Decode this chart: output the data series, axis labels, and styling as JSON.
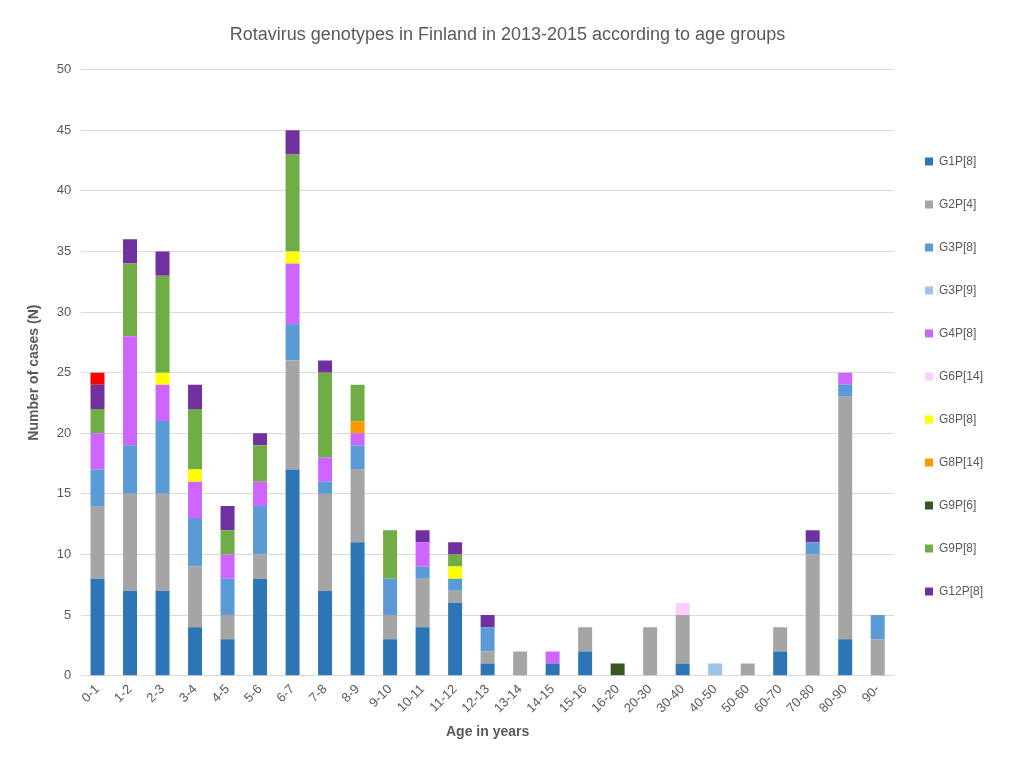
{
  "chart_data": {
    "type": "bar",
    "title": "Rotavirus genotypes in Finland in 2013-2015 according to age groups",
    "xlabel": "Age in years",
    "ylabel": "Number of cases (N)",
    "categories": [
      "0-1",
      "1-2",
      "2-3",
      "3-4",
      "4-5",
      "5-6",
      "6-7",
      "7-8",
      "8-9",
      "9-10",
      "10-11",
      "11-12",
      "12-13",
      "13-14",
      "14-15",
      "15-16",
      "16-20",
      "20-30",
      "30-40",
      "40-50",
      "50-60",
      "60-70",
      "70-80",
      "80-90",
      "90-"
    ],
    "series": [
      {
        "name": "G1P[8]",
        "color": "#2e75b6",
        "values": [
          8,
          7,
          7,
          4,
          3,
          8,
          17,
          7,
          11,
          3,
          4,
          6,
          1,
          null,
          1,
          2,
          null,
          null,
          1,
          null,
          null,
          2,
          null,
          3,
          null
        ]
      },
      {
        "name": "G2P[4]",
        "color": "#a5a5a5",
        "values": [
          6,
          8,
          8,
          5,
          2,
          2,
          9,
          8,
          6,
          2,
          4,
          1,
          1,
          2,
          null,
          2,
          null,
          4,
          4,
          null,
          1,
          2,
          10,
          20,
          3
        ]
      },
      {
        "name": "G3P[8]",
        "color": "#5b9bd5",
        "values": [
          3,
          4,
          6,
          4,
          3,
          4,
          3,
          1,
          2,
          3,
          1,
          1,
          2,
          null,
          null,
          null,
          null,
          null,
          null,
          null,
          null,
          null,
          1,
          1,
          2
        ]
      },
      {
        "name": "G3P[9]",
        "color": "#9dc3e6",
        "values": [
          null,
          null,
          null,
          null,
          null,
          null,
          null,
          null,
          null,
          null,
          null,
          null,
          null,
          null,
          null,
          null,
          null,
          null,
          null,
          1,
          null,
          null,
          null,
          null,
          null
        ]
      },
      {
        "name": "G4P[8]",
        "color": "#cc66ff",
        "values": [
          3,
          9,
          3,
          3,
          2,
          2,
          5,
          2,
          1,
          null,
          2,
          null,
          null,
          null,
          1,
          null,
          null,
          null,
          null,
          null,
          null,
          null,
          null,
          1,
          null
        ]
      },
      {
        "name": "G6P[14]",
        "color": "#ffccff",
        "values": [
          null,
          null,
          null,
          null,
          null,
          null,
          null,
          null,
          null,
          null,
          null,
          null,
          null,
          null,
          null,
          null,
          null,
          null,
          1,
          null,
          null,
          null,
          null,
          null,
          null
        ]
      },
      {
        "name": "G8P[8]",
        "color": "#ffff00",
        "values": [
          null,
          null,
          1,
          1,
          null,
          null,
          1,
          null,
          null,
          null,
          null,
          1,
          null,
          null,
          null,
          null,
          null,
          null,
          null,
          null,
          null,
          null,
          null,
          null,
          null
        ]
      },
      {
        "name": "G8P[14]",
        "color": "#ff9900",
        "values": [
          null,
          null,
          null,
          null,
          null,
          null,
          null,
          null,
          1,
          null,
          null,
          null,
          null,
          null,
          null,
          null,
          null,
          null,
          null,
          null,
          null,
          null,
          null,
          null,
          null
        ]
      },
      {
        "name": "G9P[6]",
        "color": "#375623",
        "values": [
          null,
          null,
          null,
          null,
          null,
          null,
          null,
          null,
          null,
          null,
          null,
          null,
          null,
          null,
          null,
          null,
          1,
          null,
          null,
          null,
          null,
          null,
          null,
          null,
          null
        ]
      },
      {
        "name": "G9P[8]",
        "color": "#70ad47",
        "values": [
          2,
          6,
          8,
          5,
          2,
          3,
          8,
          7,
          3,
          4,
          null,
          1,
          null,
          null,
          null,
          null,
          null,
          null,
          null,
          null,
          null,
          null,
          null,
          null,
          null
        ]
      },
      {
        "name": "G12P[8]",
        "color": "#7030a0",
        "values": [
          2,
          2,
          2,
          2,
          2,
          1,
          2,
          1,
          null,
          null,
          1,
          1,
          1,
          null,
          null,
          null,
          null,
          null,
          null,
          null,
          null,
          null,
          1,
          null,
          null
        ]
      },
      {
        "color": "#ff0000",
        "values": [
          1,
          null,
          null,
          null,
          null,
          null,
          null,
          null,
          null,
          null,
          null,
          null,
          null,
          null,
          null,
          null,
          null,
          null,
          null,
          null,
          null,
          null,
          null,
          null,
          null
        ]
      }
    ],
    "stacked": true,
    "ylim": [
      0,
      50
    ],
    "yticks": [
      0,
      5,
      10,
      15,
      20,
      25,
      30,
      35,
      40,
      45,
      50
    ],
    "grid": "y",
    "legend": "right"
  }
}
